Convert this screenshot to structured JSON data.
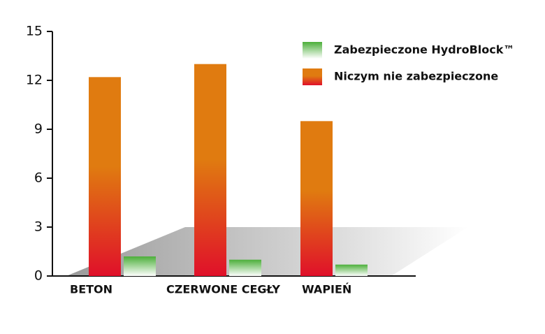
{
  "chart_data": {
    "type": "bar",
    "categories": [
      "BETON",
      "CZERWONE CEGŁY",
      "WAPIEŃ"
    ],
    "series": [
      {
        "name": "Zabezpieczone HydroBlock™",
        "color": "#4caf3a",
        "values": [
          1.2,
          1.0,
          0.7
        ]
      },
      {
        "name": "Niczym nie zabezpieczone",
        "color": "#e07b10",
        "values": [
          12.2,
          13.0,
          9.5
        ]
      }
    ],
    "ylim": [
      0,
      15
    ],
    "yticks": [
      0,
      3,
      6,
      9,
      12,
      15
    ],
    "legend": "upper right"
  }
}
